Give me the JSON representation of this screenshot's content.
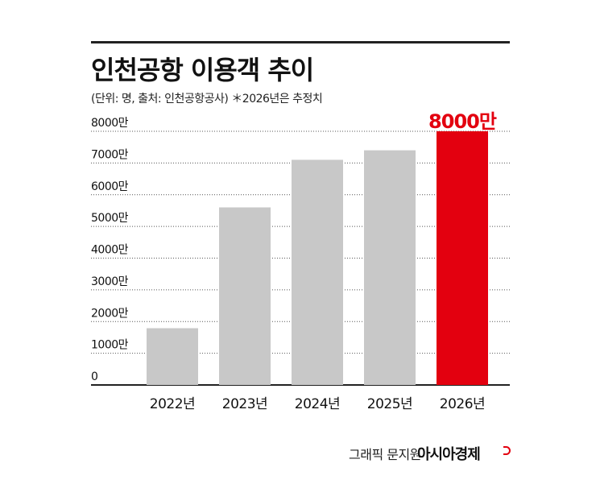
{
  "header": {
    "title": "인천공항 이용객 추이",
    "subtitle": "(단위: 명, 출처: 인천공항공사) ＊2026년은 추정치"
  },
  "footer": {
    "credit": "그래픽 문지원",
    "brand": "아시아경제"
  },
  "colors": {
    "bar": "#c8c8c8",
    "highlight": "#e3000f",
    "grid": "#555555",
    "text": "#111111"
  },
  "chart_data": {
    "type": "bar",
    "title": "인천공항 이용객 추이",
    "subtitle": "(단위: 명, 출처: 인천공항공사) ＊2026년은 추정치",
    "categories": [
      "2022년",
      "2023년",
      "2024년",
      "2025년",
      "2026년"
    ],
    "values": [
      1790,
      5600,
      7100,
      7400,
      8000
    ],
    "highlight_index": 4,
    "highlight_label": "8000만",
    "ylim": [
      0,
      8000
    ],
    "yticks": [
      0,
      1000,
      2000,
      3000,
      4000,
      5000,
      6000,
      7000,
      8000
    ],
    "ytick_labels": [
      "0",
      "1000만",
      "2000만",
      "3000만",
      "4000만",
      "5000만",
      "6000만",
      "7000만",
      "8000만"
    ],
    "grid": true,
    "grid_style": "dotted"
  }
}
